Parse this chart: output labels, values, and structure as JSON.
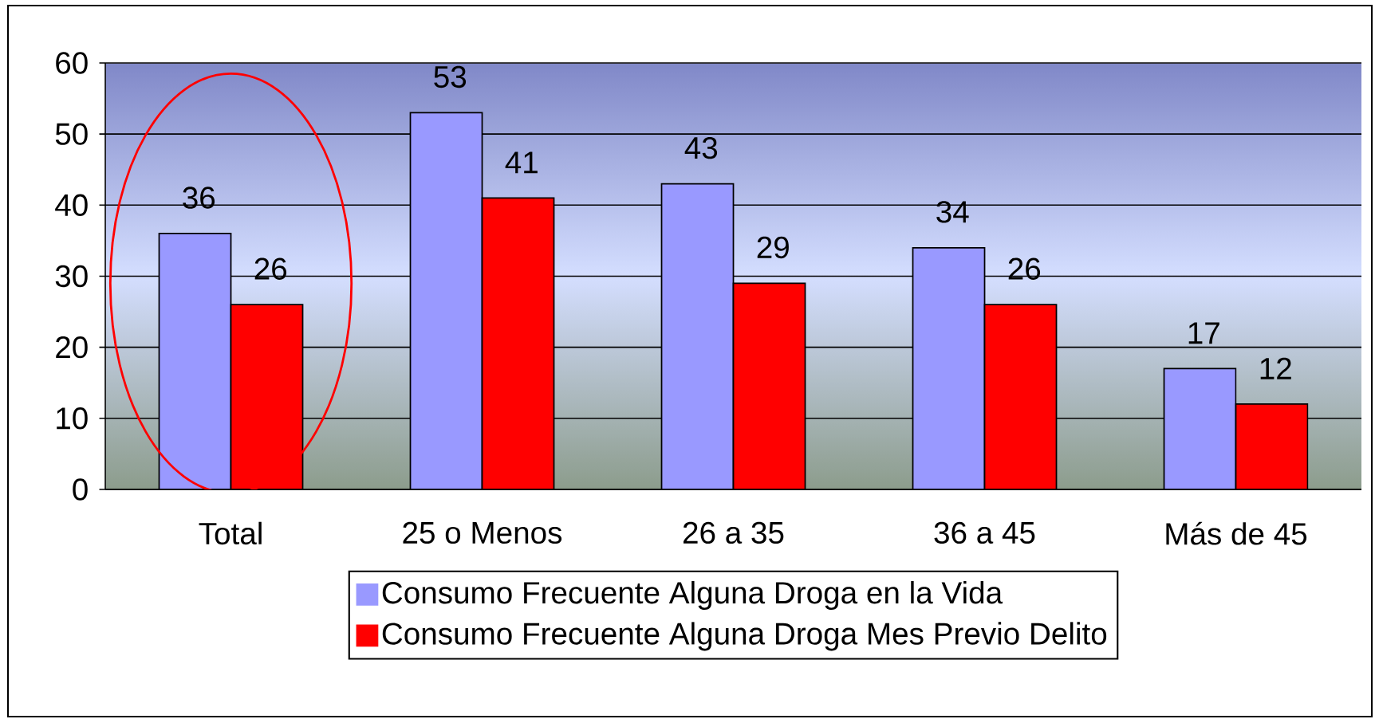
{
  "chart_data": {
    "type": "bar",
    "categories": [
      "Total",
      "25 o Menos",
      "26 a 35",
      "36 a 45",
      "Más de 45"
    ],
    "series": [
      {
        "name": "Consumo Frecuente Alguna Droga en la Vida",
        "color": "#9999ff",
        "values": [
          36,
          53,
          43,
          34,
          17
        ]
      },
      {
        "name": "Consumo Frecuente Alguna Droga Mes Previo Delito",
        "color": "#ff0000",
        "values": [
          26,
          41,
          29,
          26,
          12
        ]
      }
    ],
    "ylim": [
      0,
      60
    ],
    "yticks": [
      0,
      10,
      20,
      30,
      40,
      50,
      60
    ],
    "grid": "y",
    "legend": "bottom",
    "data_labels": true
  }
}
